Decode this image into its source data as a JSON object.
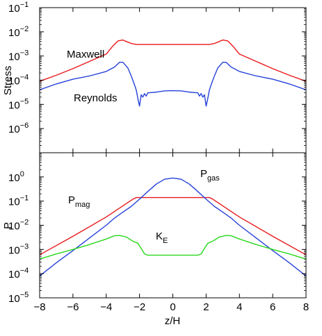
{
  "chart_data": [
    {
      "type": "line",
      "ylabel": "Stress",
      "yscale": "log",
      "xlim": [
        -8,
        8
      ],
      "ylim_exp": [
        -7,
        -1
      ],
      "grid": false,
      "y_ticks": [
        {
          "exp": -6,
          "base": "10",
          "sup": "−6"
        },
        {
          "exp": -5,
          "base": "10",
          "sup": "−5"
        },
        {
          "exp": -4,
          "base": "10",
          "sup": "−4"
        },
        {
          "exp": -3,
          "base": "10",
          "sup": "−3"
        },
        {
          "exp": -2,
          "base": "10",
          "sup": "−2"
        },
        {
          "exp": -1,
          "base": "10",
          "sup": "−1"
        }
      ],
      "series": [
        {
          "name": "Maxwell",
          "color": "#e8181a",
          "x": [
            -8,
            -7,
            -6,
            -5,
            -4,
            -3.6,
            -3.3,
            -3.0,
            -2.8,
            -2.5,
            -2.2,
            -2.0,
            0,
            2.0,
            2.2,
            2.5,
            2.8,
            3.0,
            3.3,
            3.6,
            4,
            5,
            6,
            7,
            8
          ],
          "y": [
            9e-05,
            0.00016,
            0.0003,
            0.0006,
            0.0012,
            0.0026,
            0.0042,
            0.0046,
            0.004,
            0.0033,
            0.003,
            0.003,
            0.003,
            0.003,
            0.003,
            0.0033,
            0.004,
            0.0046,
            0.0042,
            0.0026,
            0.0012,
            0.0006,
            0.0003,
            0.00016,
            9e-05
          ]
        },
        {
          "name": "Reynolds",
          "color": "#2541d8",
          "x": [
            -8,
            -7,
            -6,
            -5,
            -4,
            -3.5,
            -3.2,
            -3.0,
            -2.7,
            -2.5,
            -2.35,
            -2.2,
            -2.08,
            -2.0,
            -1.9,
            -1.8,
            -1.7,
            -1.6,
            -1.5,
            -1.0,
            -0.5,
            0,
            0.5,
            1.0,
            1.5,
            1.6,
            1.7,
            1.8,
            1.9,
            2.0,
            2.08,
            2.2,
            2.35,
            2.5,
            2.7,
            3.0,
            3.2,
            3.5,
            4,
            5,
            6,
            7,
            8
          ],
          "y": [
            4e-05,
            7e-05,
            0.00011,
            0.00015,
            0.00023,
            0.00035,
            0.00055,
            0.00055,
            0.00032,
            0.00015,
            8e-05,
            4e-05,
            1.5e-05,
            8.5e-06,
            2.5e-05,
            2e-05,
            2.8e-05,
            2.2e-05,
            3e-05,
            3.2e-05,
            3.6e-05,
            3.7e-05,
            3.6e-05,
            3.2e-05,
            3e-05,
            2.2e-05,
            2.8e-05,
            2e-05,
            2.5e-05,
            8.5e-06,
            1.5e-05,
            4e-05,
            8e-05,
            0.00015,
            0.00032,
            0.00055,
            0.00055,
            0.00035,
            0.00023,
            0.00015,
            0.00011,
            7e-05,
            4e-05
          ]
        }
      ]
    },
    {
      "type": "line",
      "ylabel": "P",
      "xlabel": "z/H",
      "yscale": "log",
      "xlim": [
        -8,
        8
      ],
      "ylim_exp": [
        -5,
        1
      ],
      "grid": false,
      "x_ticks": [
        "−8",
        "−6",
        "−4",
        "−2",
        "0",
        "2",
        "4",
        "6",
        "8"
      ],
      "x_tick_values": [
        -8,
        -6,
        -4,
        -2,
        0,
        2,
        4,
        6,
        8
      ],
      "y_ticks": [
        {
          "exp": -5,
          "base": "10",
          "sup": "−5"
        },
        {
          "exp": -4,
          "base": "10",
          "sup": "−4"
        },
        {
          "exp": -3,
          "base": "10",
          "sup": "−3"
        },
        {
          "exp": -2,
          "base": "10",
          "sup": "−2"
        },
        {
          "exp": -1,
          "base": "10",
          "sup": "−1"
        },
        {
          "exp": 0,
          "base": "10",
          "sup": "0"
        }
      ],
      "series": [
        {
          "name": "P_mag",
          "label": {
            "base": "P",
            "sub": "mag"
          },
          "color": "#e8181a",
          "x": [
            -8,
            -6,
            -4,
            -2.4,
            -2.2,
            0,
            2.2,
            2.4,
            4,
            6,
            8
          ],
          "y": [
            0.0006,
            0.0035,
            0.022,
            0.12,
            0.14,
            0.14,
            0.14,
            0.12,
            0.022,
            0.0035,
            0.0006
          ]
        },
        {
          "name": "P_gas",
          "label": {
            "base": "P",
            "sub": "gas"
          },
          "color": "#2541d8",
          "x": [
            -8,
            -7,
            -6,
            -5,
            -4,
            -3.5,
            -3,
            -2.5,
            -2,
            -1.5,
            -1,
            -0.5,
            0,
            0.5,
            1,
            1.5,
            2,
            2.5,
            3,
            3.5,
            4,
            5,
            6,
            7,
            8
          ],
          "y": [
            8e-05,
            0.00028,
            0.0009,
            0.003,
            0.01,
            0.02,
            0.035,
            0.06,
            0.12,
            0.25,
            0.5,
            0.8,
            0.9,
            0.8,
            0.5,
            0.25,
            0.12,
            0.06,
            0.035,
            0.02,
            0.01,
            0.003,
            0.0009,
            0.00028,
            8e-05
          ]
        },
        {
          "name": "K_E",
          "label": {
            "base": "K",
            "sub": "E"
          },
          "color": "#29d81c",
          "x": [
            -8,
            -7,
            -6,
            -5,
            -4,
            -3.5,
            -3.2,
            -2.8,
            -2.4,
            -2.1,
            -1.9,
            -1.7,
            -1.5,
            0,
            1.5,
            1.7,
            1.9,
            2.1,
            2.4,
            2.8,
            3.2,
            3.5,
            4,
            5,
            6,
            7,
            8
          ],
          "y": [
            0.0004,
            0.00065,
            0.001,
            0.0016,
            0.0027,
            0.0037,
            0.0038,
            0.0033,
            0.0022,
            0.0018,
            0.0011,
            0.00065,
            0.00058,
            0.00058,
            0.00058,
            0.00065,
            0.0011,
            0.0018,
            0.0022,
            0.0033,
            0.0038,
            0.0037,
            0.0027,
            0.0016,
            0.001,
            0.00065,
            0.0004
          ]
        }
      ]
    }
  ],
  "annotations": {
    "maxwell": "Maxwell",
    "reynolds": "Reynolds",
    "p_base": "P",
    "mag_sub": "mag",
    "gas_sub": "gas",
    "k_base": "K",
    "e_sub": "E"
  }
}
